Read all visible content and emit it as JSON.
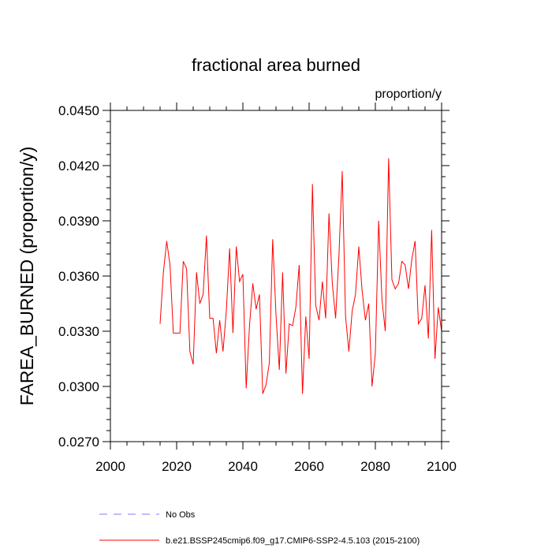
{
  "chart_data": {
    "type": "line",
    "title": "fractional area burned",
    "units": "proportion/y",
    "xlabel": "",
    "ylabel": "FAREA_BURNED  (proportion/y)",
    "xlim": [
      2000,
      2100
    ],
    "ylim": [
      0.027,
      0.045
    ],
    "x_ticks": [
      2000,
      2020,
      2040,
      2060,
      2080,
      2100
    ],
    "x_tick_labels": [
      "2000",
      "2020",
      "2040",
      "2060",
      "2080",
      "2100"
    ],
    "y_ticks": [
      0.027,
      0.03,
      0.033,
      0.036,
      0.039,
      0.042,
      0.045
    ],
    "y_tick_labels": [
      "0.0270",
      "0.0300",
      "0.0330",
      "0.0360",
      "0.0390",
      "0.0420",
      "0.0450"
    ],
    "legend_position": "bottom",
    "series": [
      {
        "name": "b.e21.BSSP245cmip6.f09_g17.CMIP6-SSP2-4.5.103 (2015-2100)",
        "color": "#ff0000",
        "style": "solid",
        "x": [
          2015,
          2016,
          2017,
          2018,
          2019,
          2020,
          2021,
          2022,
          2023,
          2024,
          2025,
          2026,
          2027,
          2028,
          2029,
          2030,
          2031,
          2032,
          2033,
          2034,
          2035,
          2036,
          2037,
          2038,
          2039,
          2040,
          2041,
          2042,
          2043,
          2044,
          2045,
          2046,
          2047,
          2048,
          2049,
          2050,
          2051,
          2052,
          2053,
          2054,
          2055,
          2056,
          2057,
          2058,
          2059,
          2060,
          2061,
          2062,
          2063,
          2064,
          2065,
          2066,
          2067,
          2068,
          2069,
          2070,
          2071,
          2072,
          2073,
          2074,
          2075,
          2076,
          2077,
          2078,
          2079,
          2080,
          2081,
          2082,
          2083,
          2084,
          2085,
          2086,
          2087,
          2088,
          2089,
          2090,
          2091,
          2092,
          2093,
          2094,
          2095,
          2096,
          2097,
          2098,
          2099,
          2100
        ],
        "values": [
          0.0334,
          0.0362,
          0.0379,
          0.0366,
          0.0329,
          0.0329,
          0.0329,
          0.0368,
          0.0364,
          0.0319,
          0.0312,
          0.0362,
          0.0345,
          0.035,
          0.0382,
          0.0337,
          0.0337,
          0.0318,
          0.0336,
          0.0319,
          0.0341,
          0.0375,
          0.0329,
          0.0376,
          0.0357,
          0.0361,
          0.0299,
          0.0333,
          0.0356,
          0.0342,
          0.035,
          0.0296,
          0.0301,
          0.0313,
          0.038,
          0.0339,
          0.0309,
          0.0362,
          0.0307,
          0.0334,
          0.0333,
          0.0343,
          0.0366,
          0.0296,
          0.0338,
          0.0315,
          0.041,
          0.0344,
          0.0336,
          0.0357,
          0.0337,
          0.0394,
          0.0356,
          0.0337,
          0.0371,
          0.0417,
          0.0338,
          0.0319,
          0.0341,
          0.035,
          0.0376,
          0.0352,
          0.0336,
          0.0345,
          0.03,
          0.0318,
          0.039,
          0.0347,
          0.033,
          0.0424,
          0.0358,
          0.0353,
          0.0356,
          0.0368,
          0.0366,
          0.0353,
          0.0369,
          0.0379,
          0.0334,
          0.0337,
          0.0355,
          0.0326,
          0.0385,
          0.0315,
          0.0343,
          0.033
        ]
      }
    ],
    "legend": [
      {
        "label": "No Obs",
        "color": "#7f7fff",
        "style": "dashed"
      },
      {
        "label": "b.e21.BSSP245cmip6.f09_g17.CMIP6-SSP2-4.5.103 (2015-2100)",
        "color": "#ff0000",
        "style": "solid"
      }
    ]
  }
}
